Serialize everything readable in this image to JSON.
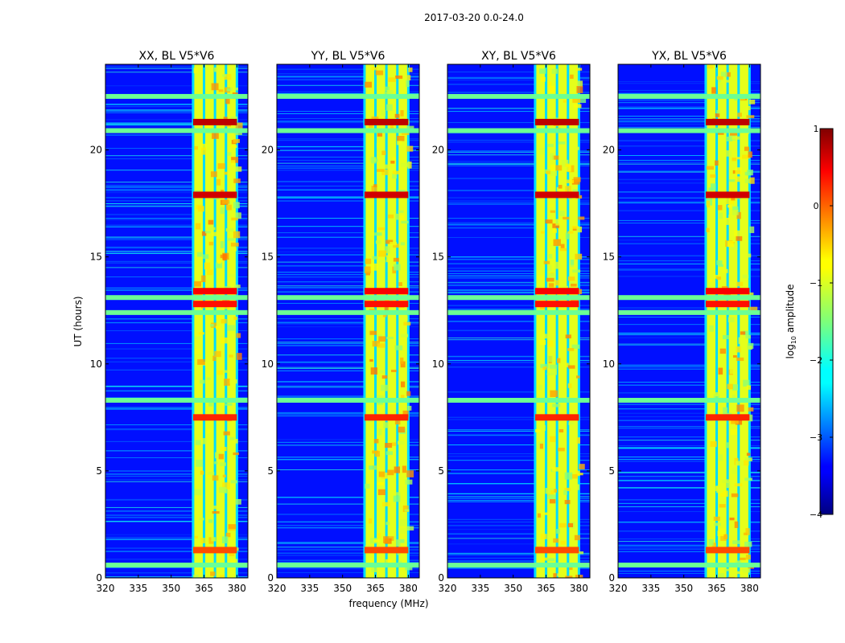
{
  "suptitle": "2017-03-20 0.0-24.0",
  "chart_data": {
    "type": "heatmap",
    "shared": {
      "xlabel": "frequency (MHz)",
      "ylabel": "UT (hours)",
      "xlim": [
        320,
        385
      ],
      "ylim": [
        0,
        24
      ],
      "xticks": [
        320,
        335,
        350,
        365,
        380
      ],
      "yticks": [
        0,
        5,
        10,
        15,
        20
      ],
      "xtick_labels": [
        "320",
        "335",
        "350",
        "365",
        "380"
      ],
      "ytick_labels": [
        "0",
        "5",
        "10",
        "15",
        "20"
      ]
    },
    "panels": [
      {
        "title": "XX, BL V5*V6",
        "polarization": "XX"
      },
      {
        "title": "YY, BL V5*V6",
        "polarization": "YY"
      },
      {
        "title": "XY, BL V5*V6",
        "polarization": "XY"
      },
      {
        "title": "YX, BL V5*V6",
        "polarization": "YX"
      }
    ],
    "features": {
      "background_level": -3.3,
      "rfi_band_mhz": [
        360,
        380
      ],
      "rfi_band_level": -1.0,
      "rfi_subchannel_edges_mhz": [
        360,
        365,
        370,
        375,
        380
      ],
      "hot_rows": [
        {
          "ut": 21.3,
          "level": 0.7
        },
        {
          "ut": 17.9,
          "level": 0.6
        },
        {
          "ut": 13.4,
          "level": 0.4
        },
        {
          "ut": 12.8,
          "level": 0.3
        },
        {
          "ut": 7.5,
          "level": 0.2
        },
        {
          "ut": 1.3,
          "level": 0.0
        }
      ],
      "broadband_rows_ut": [
        0.6,
        8.3,
        12.4,
        13.1,
        20.9,
        22.5
      ]
    },
    "colorbar": {
      "label": "log₁₀ amplitude",
      "label_base": "log",
      "label_sub": "10",
      "label_rest": " amplitude",
      "range": [
        -4,
        1
      ],
      "ticks": [
        1,
        0,
        -1,
        -2,
        -3,
        -4
      ],
      "tick_labels": [
        "1",
        "0",
        "−1",
        "−2",
        "−3",
        "−4"
      ],
      "colormap": "jet"
    }
  }
}
